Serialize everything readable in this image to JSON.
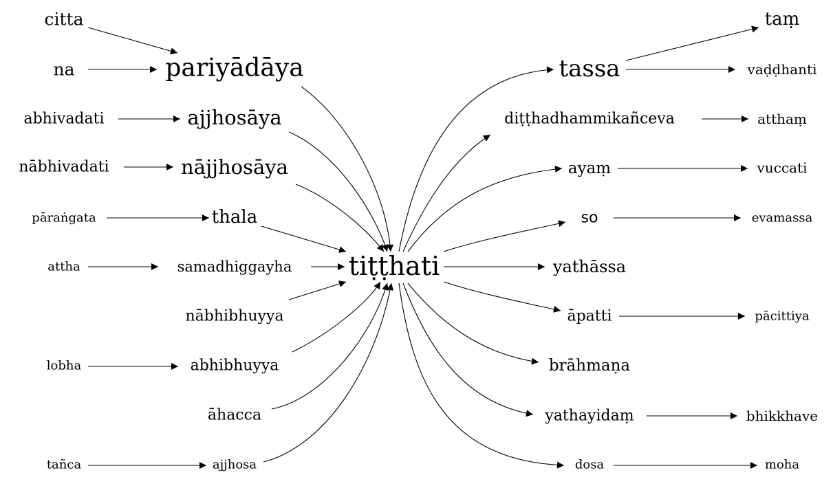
{
  "nodes": {
    "center": "tiṭṭhati",
    "citta": "citta",
    "na": "na",
    "pariyadaya": "pariyādāya",
    "abhivadati": "abhivadati",
    "ajjhosaya": "ajjhosāya",
    "nabhivadati": "nābhivadati",
    "najjhosaya": "nājjhosāya",
    "parangata": "pāraṅgata",
    "thala": "thala",
    "attha": "attha",
    "samadhiggayha": "samadhiggayha",
    "nabhibhuyya": "nābhibhuyya",
    "lobha": "lobha",
    "abhibhuyya": "abhibhuyya",
    "ahacca": "āhacca",
    "tanca": "tañca",
    "ajjhosa": "ajjhosa",
    "tassa": "tassa",
    "tam": "taṃ",
    "vaddhanti": "vaḍḍhanti",
    "ditthadhammika": "diṭṭhadhammikañceva",
    "attham": "atthaṃ",
    "ayam": "ayaṃ",
    "vuccati": "vuccati",
    "so": "so",
    "evamassa": "evamassa",
    "yathassa": "yathāssa",
    "apatti": "āpatti",
    "pacittiya": "pācittiya",
    "brahmana": "brāhmaṇa",
    "yathayidam": "yathayidaṃ",
    "bhikkhave": "bhikkhave",
    "dosa": "dosa",
    "moha": "moha"
  }
}
